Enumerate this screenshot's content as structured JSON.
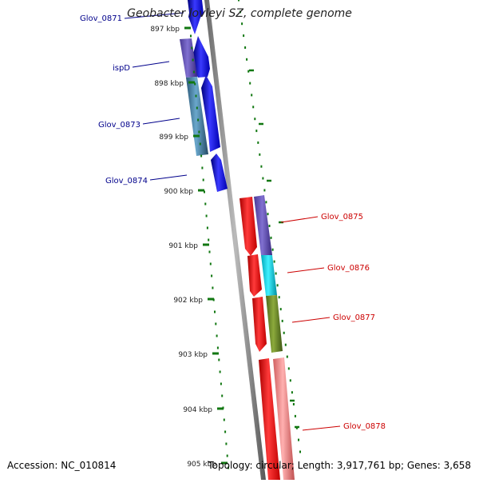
{
  "title": "Geobacter lovleyi SZ, complete genome",
  "footer": {
    "accession": "Accession: NC_010814",
    "summary": "Topology: circular; Length: 3,917,761 bp; Genes: 3,658"
  },
  "ticks": [
    {
      "label": "897 kbp"
    },
    {
      "label": "898 kbp"
    },
    {
      "label": "899 kbp"
    },
    {
      "label": "900 kbp"
    },
    {
      "label": "901 kbp"
    },
    {
      "label": "902 kbp"
    },
    {
      "label": "903 kbp"
    },
    {
      "label": "904 kbp"
    },
    {
      "label": "905 kbp"
    }
  ],
  "genes_left": [
    {
      "label": "Glov_0871",
      "color": "#00008b"
    },
    {
      "label": "ispD",
      "color": "#00008b"
    },
    {
      "label": "Glov_0873",
      "color": "#00008b"
    },
    {
      "label": "Glov_0874",
      "color": "#00008b"
    }
  ],
  "genes_right": [
    {
      "label": "Glov_0875",
      "color": "#cc0000"
    },
    {
      "label": "Glov_0876",
      "color": "#cc0000"
    },
    {
      "label": "Glov_0877",
      "color": "#cc0000"
    },
    {
      "label": "Glov_0878",
      "color": "#cc0000"
    }
  ],
  "colors": {
    "forward_cds": "#0000ee",
    "reverse_cds": "#ee0000",
    "backbone": "#808080",
    "tick_marks": "#117711"
  }
}
